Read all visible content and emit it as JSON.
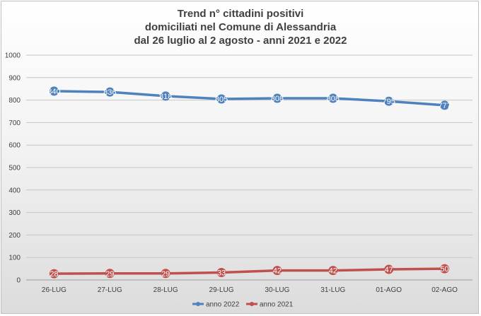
{
  "chart_data": {
    "type": "line",
    "title_lines": [
      "Trend n° cittadini positivi",
      "domiciliati nel Comune di Alessandria",
      "dal 26 luglio al 2 agosto - anni 2021 e 2022"
    ],
    "categories": [
      "26-LUG",
      "27-LUG",
      "28-LUG",
      "29-LUG",
      "30-LUG",
      "31-LUG",
      "01-AGO",
      "02-AGO"
    ],
    "series": [
      {
        "name": "anno 2022",
        "color": "#4f81bd",
        "values": [
          840,
          836,
          818,
          805,
          808,
          808,
          795,
          777
        ],
        "labels": [
          "840",
          "836",
          "818",
          "805",
          "808",
          "808",
          "795",
          "777"
        ]
      },
      {
        "name": "anno 2021",
        "color": "#c0504d",
        "values": [
          28,
          29,
          29,
          33,
          42,
          42,
          47,
          50
        ],
        "labels": [
          "28",
          "29",
          "29",
          "33",
          "42",
          "42",
          "47",
          "50"
        ]
      }
    ],
    "ylim": [
      0,
      1000
    ],
    "yticks": [
      "0",
      "100",
      "200",
      "300",
      "400",
      "500",
      "600",
      "700",
      "800",
      "900",
      "1000"
    ],
    "grid": true,
    "legend": "bottom"
  }
}
